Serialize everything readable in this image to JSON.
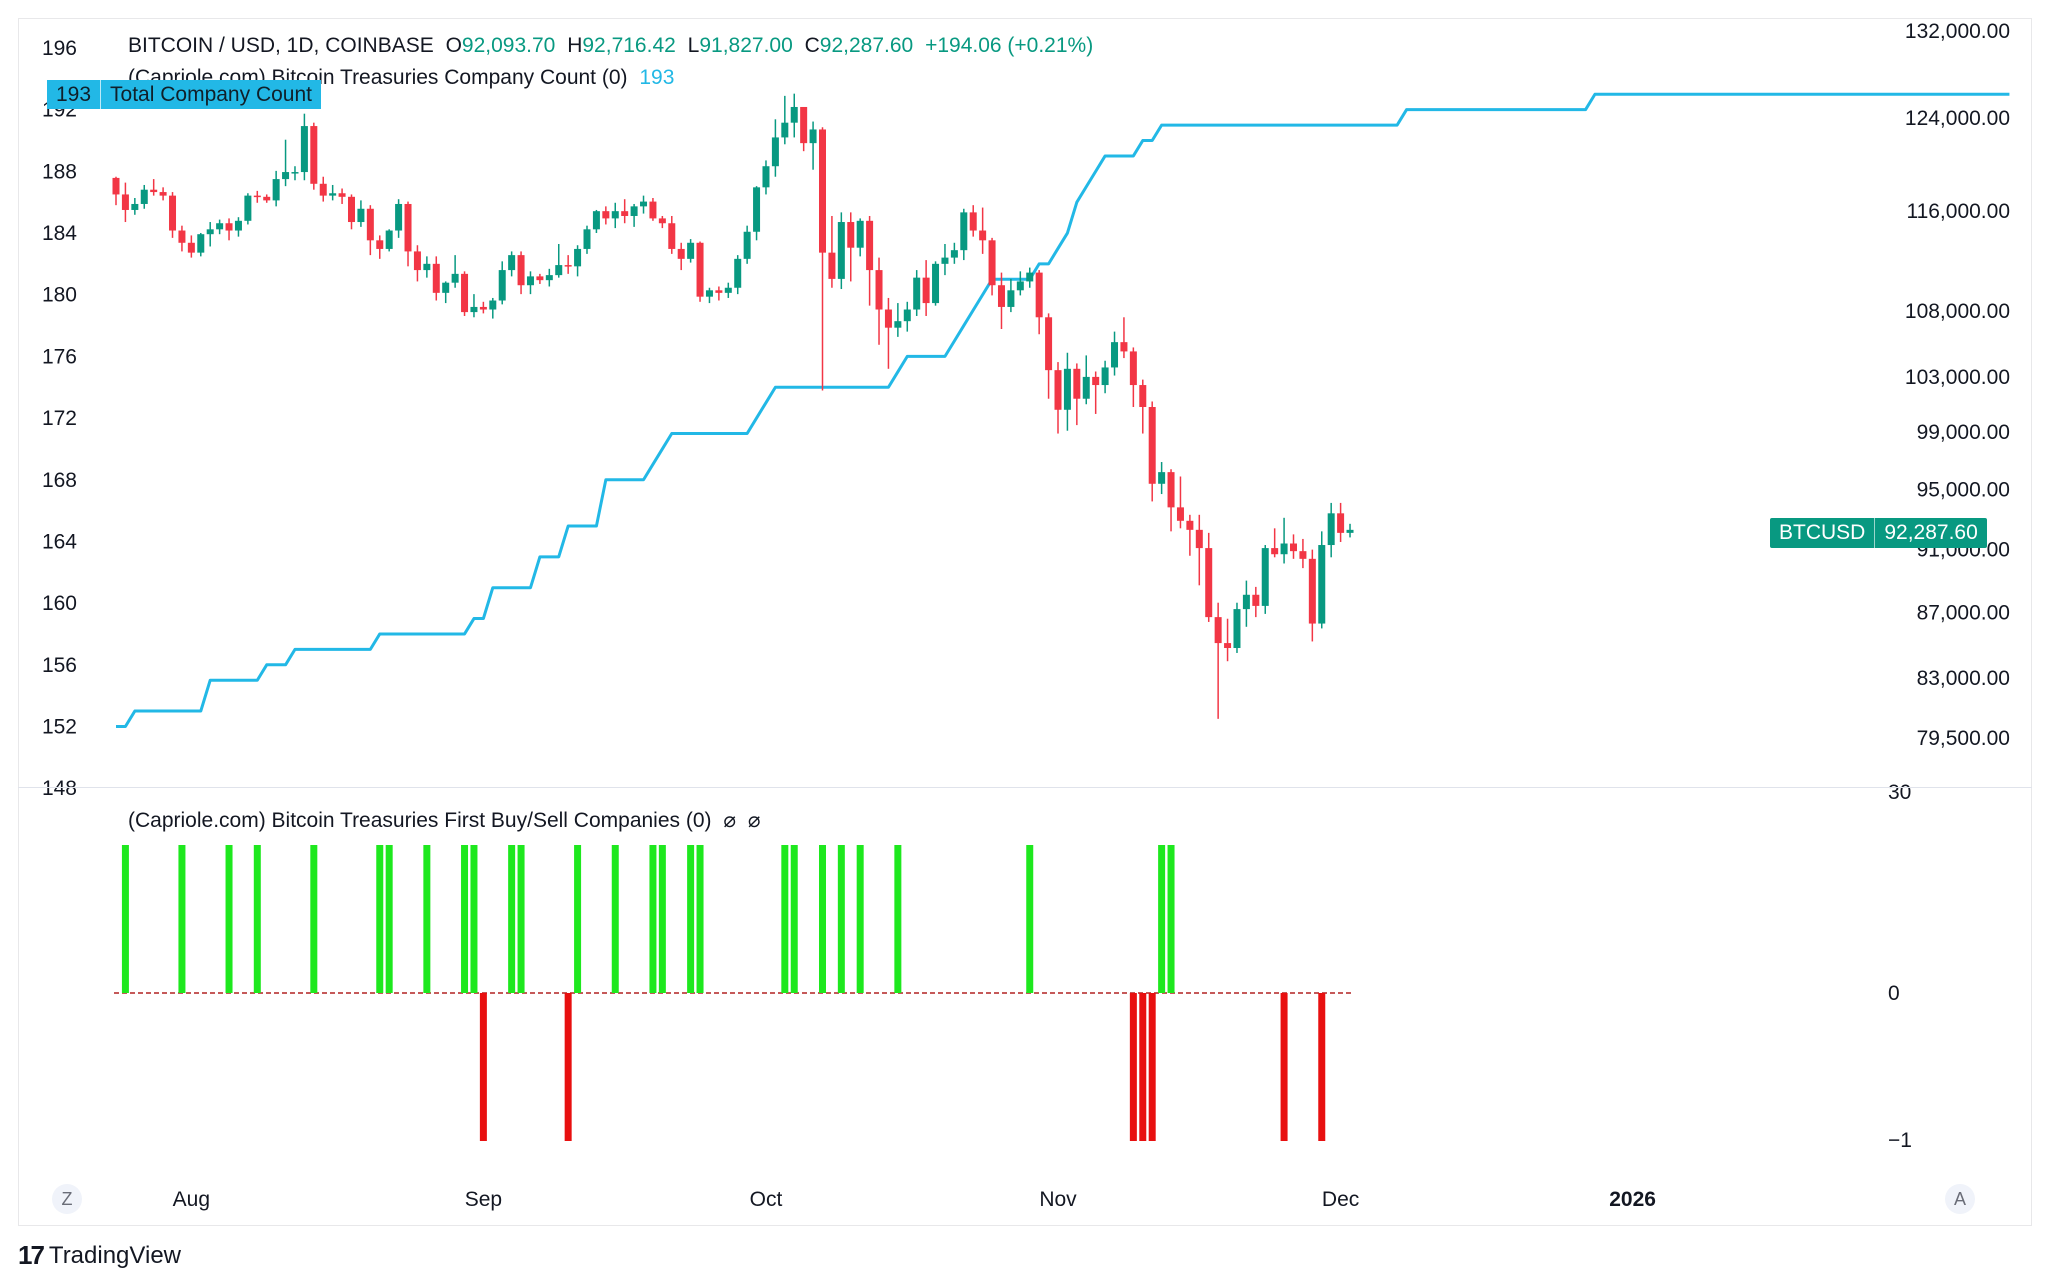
{
  "header": {
    "symbol": "BITCOIN / USD, 1D, COINBASE",
    "o_label": "O",
    "o_value": "92,093.70",
    "h_label": "H",
    "h_value": "92,716.42",
    "l_label": "L",
    "l_value": "91,827.00",
    "c_label": "C",
    "c_value": "92,287.60",
    "change": "+194.06 (+0.21%)"
  },
  "indicator1": {
    "title": "(Capriole.com) Bitcoin Treasuries Company Count (0)",
    "value": "193",
    "badge_value": "193",
    "badge_label": "Total Company Count"
  },
  "indicator2": {
    "title": "(Capriole.com) Bitcoin Treasuries First Buy/Sell Companies (0)",
    "icons": [
      "⌀",
      "⌀"
    ]
  },
  "price_badge": {
    "symbol": "BTCUSD",
    "value": "92,287.60"
  },
  "left_axis_labels": [
    "196",
    "192",
    "188",
    "184",
    "180",
    "176",
    "172",
    "168",
    "164",
    "160",
    "156",
    "152",
    "148"
  ],
  "right_axis_labels": [
    "132,000.00",
    "124,000.00",
    "116,000.00",
    "108,000.00",
    "103,000.00",
    "99,000.00",
    "95,000.00",
    "91,000.00",
    "87,000.00",
    "83,000.00",
    "79,500.00"
  ],
  "lower_axis_labels": [
    "30",
    "0",
    "−1"
  ],
  "x_axis_labels": [
    "Aug",
    "Sep",
    "Oct",
    "Nov",
    "Dec",
    "2026"
  ],
  "bottom_buttons": {
    "left": "Z",
    "right": "A"
  },
  "brand": {
    "logo": "17",
    "name": "TradingView"
  },
  "colors": {
    "up": "#089981",
    "down": "#f23645",
    "count_line": "#22b8e6",
    "buy_bar": "#1ee81e",
    "sell_bar": "#e81010"
  },
  "chart_data": [
    {
      "type": "candlestick",
      "title": "BITCOIN / USD, 1D, COINBASE",
      "price_scale": "log",
      "ylim": [
        79000,
        132000
      ],
      "first_date": "2025-07-24",
      "ohlc": [
        [
          118800,
          118900,
          116500,
          117400
        ],
        [
          117400,
          118400,
          115100,
          116100
        ],
        [
          116100,
          117100,
          115700,
          116600
        ],
        [
          116600,
          118200,
          116200,
          117800
        ],
        [
          117800,
          118700,
          117300,
          117600
        ],
        [
          117600,
          118000,
          116900,
          117300
        ],
        [
          117300,
          117600,
          113800,
          114400
        ],
        [
          114400,
          114800,
          112700,
          113400
        ],
        [
          113400,
          114000,
          112200,
          112600
        ],
        [
          112600,
          114200,
          112300,
          114100
        ],
        [
          114100,
          115100,
          113100,
          114500
        ],
        [
          114500,
          115300,
          114100,
          115000
        ],
        [
          115000,
          115400,
          113600,
          114400
        ],
        [
          114400,
          115500,
          113900,
          115200
        ],
        [
          115200,
          117500,
          114900,
          117300
        ],
        [
          117300,
          117700,
          116700,
          117200
        ],
        [
          117200,
          117400,
          116700,
          116900
        ],
        [
          116900,
          119400,
          116400,
          118700
        ],
        [
          118700,
          122100,
          118100,
          119300
        ],
        [
          119300,
          119800,
          118600,
          119300
        ],
        [
          119300,
          124400,
          118600,
          123300
        ],
        [
          123300,
          123600,
          117800,
          118300
        ],
        [
          118300,
          118900,
          116800,
          117300
        ],
        [
          117300,
          118200,
          116900,
          117500
        ],
        [
          117500,
          117900,
          116600,
          117200
        ],
        [
          117200,
          117400,
          114500,
          115100
        ],
        [
          115100,
          116900,
          114700,
          116200
        ],
        [
          116200,
          116500,
          112400,
          113600
        ],
        [
          113600,
          114000,
          112100,
          112900
        ],
        [
          112900,
          114500,
          112700,
          114400
        ],
        [
          114400,
          117000,
          113800,
          116600
        ],
        [
          116600,
          116800,
          111500,
          112700
        ],
        [
          112700,
          113200,
          110300,
          111200
        ],
        [
          111200,
          112300,
          110600,
          111700
        ],
        [
          111700,
          112300,
          108800,
          109400
        ],
        [
          109400,
          110300,
          108600,
          110200
        ],
        [
          110200,
          112400,
          109800,
          110900
        ],
        [
          110900,
          111100,
          107600,
          107900
        ],
        [
          107900,
          109300,
          107500,
          108300
        ],
        [
          108300,
          108700,
          107800,
          108100
        ],
        [
          108100,
          109000,
          107400,
          108800
        ],
        [
          108800,
          111900,
          108500,
          111200
        ],
        [
          111200,
          112700,
          110700,
          112400
        ],
        [
          112400,
          112700,
          109300,
          110000
        ],
        [
          110000,
          111100,
          109300,
          110700
        ],
        [
          110700,
          110900,
          110100,
          110400
        ],
        [
          110400,
          111300,
          109900,
          110800
        ],
        [
          110800,
          113300,
          110600,
          111600
        ],
        [
          111600,
          112400,
          110900,
          111500
        ],
        [
          111500,
          113200,
          110700,
          112900
        ],
        [
          112900,
          114800,
          112500,
          114500
        ],
        [
          114500,
          116100,
          114200,
          116000
        ],
        [
          116000,
          116400,
          114900,
          115400
        ],
        [
          115400,
          116700,
          114600,
          116000
        ],
        [
          116000,
          117000,
          115000,
          115600
        ],
        [
          115600,
          116600,
          114700,
          116400
        ],
        [
          116400,
          117300,
          115800,
          116800
        ],
        [
          116800,
          117100,
          115200,
          115400
        ],
        [
          115400,
          115600,
          114600,
          115000
        ],
        [
          115000,
          115600,
          112500,
          112900
        ],
        [
          112900,
          113400,
          111200,
          112100
        ],
        [
          112100,
          113700,
          111800,
          113400
        ],
        [
          113400,
          113500,
          108700,
          109100
        ],
        [
          109100,
          109800,
          108600,
          109600
        ],
        [
          109600,
          109900,
          108800,
          109400
        ],
        [
          109400,
          110200,
          109000,
          109800
        ],
        [
          109800,
          112400,
          109300,
          112100
        ],
        [
          112100,
          114800,
          111700,
          114300
        ],
        [
          114300,
          118100,
          113600,
          118000
        ],
        [
          118000,
          120300,
          117400,
          119800
        ],
        [
          119800,
          123900,
          118900,
          122300
        ],
        [
          122300,
          126000,
          121700,
          123600
        ],
        [
          123600,
          126200,
          122300,
          125000
        ],
        [
          125000,
          124900,
          121100,
          121800
        ],
        [
          121800,
          123700,
          119500,
          123000
        ],
        [
          123000,
          123200,
          102000,
          112600
        ],
        [
          112600,
          115600,
          109800,
          110500
        ],
        [
          110500,
          115900,
          109700,
          115100
        ],
        [
          115100,
          115900,
          110300,
          113000
        ],
        [
          113000,
          115400,
          112300,
          115200
        ],
        [
          115200,
          115600,
          108400,
          111200
        ],
        [
          111200,
          112200,
          105400,
          108100
        ],
        [
          108100,
          109000,
          103600,
          106700
        ],
        [
          106700,
          108600,
          106000,
          107200
        ],
        [
          107200,
          108700,
          106400,
          108100
        ],
        [
          108100,
          111200,
          107600,
          110600
        ],
        [
          110600,
          112000,
          107600,
          108600
        ],
        [
          108600,
          111900,
          108400,
          111700
        ],
        [
          111700,
          113300,
          110800,
          112200
        ],
        [
          112200,
          113400,
          111700,
          112800
        ],
        [
          112800,
          116200,
          112000,
          115900
        ],
        [
          115900,
          116500,
          113900,
          114400
        ],
        [
          114400,
          116300,
          112500,
          113600
        ],
        [
          113600,
          113800,
          109200,
          110000
        ],
        [
          110000,
          111000,
          106600,
          108300
        ],
        [
          108300,
          110500,
          107900,
          109600
        ],
        [
          109600,
          111100,
          109200,
          110300
        ],
        [
          110300,
          111400,
          109800,
          111000
        ],
        [
          111000,
          111200,
          106200,
          107500
        ],
        [
          107500,
          107800,
          101400,
          103500
        ],
        [
          103500,
          104100,
          98900,
          100600
        ],
        [
          100600,
          104800,
          99100,
          103600
        ],
        [
          103600,
          104000,
          99500,
          101400
        ],
        [
          101400,
          104600,
          101000,
          103000
        ],
        [
          103000,
          103400,
          100300,
          102400
        ],
        [
          102400,
          104200,
          101800,
          103700
        ],
        [
          103700,
          106400,
          103100,
          105600
        ],
        [
          105600,
          107500,
          104400,
          104900
        ],
        [
          104900,
          105200,
          100800,
          102400
        ],
        [
          102400,
          102800,
          98900,
          100800
        ],
        [
          100800,
          101200,
          94200,
          95400
        ],
        [
          95400,
          96900,
          94700,
          96200
        ],
        [
          96200,
          96400,
          92200,
          93800
        ],
        [
          93800,
          95900,
          92400,
          92900
        ],
        [
          92900,
          93300,
          90600,
          92300
        ],
        [
          92300,
          93300,
          88700,
          91100
        ],
        [
          91100,
          92100,
          86400,
          86700
        ],
        [
          86700,
          87600,
          80600,
          85100
        ],
        [
          85100,
          86600,
          84000,
          84800
        ],
        [
          84800,
          87600,
          84500,
          87200
        ],
        [
          87200,
          89000,
          86100,
          88100
        ],
        [
          88100,
          88600,
          86700,
          87400
        ],
        [
          87400,
          91300,
          86900,
          91100
        ],
        [
          91100,
          92400,
          90500,
          90700
        ],
        [
          90700,
          93100,
          90100,
          91400
        ],
        [
          91400,
          92000,
          90400,
          90900
        ],
        [
          90900,
          91700,
          89800,
          90400
        ],
        [
          90400,
          91000,
          85200,
          86300
        ],
        [
          86300,
          92200,
          86000,
          91300
        ],
        [
          91300,
          94100,
          90500,
          93400
        ],
        [
          93400,
          94100,
          91500,
          92100
        ],
        [
          92100,
          92700,
          91800,
          92300
        ]
      ]
    },
    {
      "type": "line",
      "name": "Total Company Count",
      "first_date": "2025-07-24",
      "values": [
        152,
        152,
        153,
        153,
        153,
        153,
        153,
        153,
        153,
        153,
        155,
        155,
        155,
        155,
        155,
        155,
        156,
        156,
        156,
        157,
        157,
        157,
        157,
        157,
        157,
        157,
        157,
        157,
        158,
        158,
        158,
        158,
        158,
        158,
        158,
        158,
        158,
        158,
        159,
        159,
        161,
        161,
        161,
        161,
        161,
        163,
        163,
        163,
        165,
        165,
        165,
        165,
        168,
        168,
        168,
        168,
        168,
        169,
        170,
        171,
        171,
        171,
        171,
        171,
        171,
        171,
        171,
        171,
        172,
        173,
        174,
        174,
        174,
        174,
        174,
        174,
        174,
        174,
        174,
        174,
        174,
        174,
        174,
        175,
        176,
        176,
        176,
        176,
        176,
        177,
        178,
        179,
        180,
        181,
        181,
        181,
        181,
        181,
        182,
        182,
        183,
        184,
        186,
        187,
        188,
        189,
        189,
        189,
        189,
        190,
        190,
        191,
        191,
        191,
        191,
        191,
        191,
        191,
        191,
        191,
        191,
        191,
        191,
        191,
        191,
        191,
        191,
        191,
        191,
        191,
        191,
        191,
        191,
        191,
        191,
        191,
        191,
        192,
        192,
        192,
        192,
        192,
        192,
        192,
        192,
        192,
        192,
        192,
        192,
        192,
        192,
        192,
        192,
        192,
        192,
        192,
        192,
        193,
        193,
        193,
        193,
        193,
        193,
        193,
        193,
        193,
        193,
        193,
        193,
        193,
        193,
        193,
        193,
        193,
        193,
        193,
        193,
        193,
        193,
        193,
        193,
        193,
        193,
        193,
        193,
        193,
        193,
        193,
        193,
        193,
        193,
        193,
        193,
        193,
        193,
        193,
        193,
        193,
        193,
        193,
        193,
        193
      ],
      "ylim": [
        148,
        197
      ]
    },
    {
      "type": "bar",
      "title": "(Capriole.com) Bitcoin Treasuries First Buy/Sell Companies (0)",
      "first_date": "2025-07-24",
      "day_index": [
        1,
        7,
        12,
        15,
        21,
        28,
        29,
        33,
        37,
        38,
        39,
        42,
        43,
        48,
        49,
        53,
        57,
        58,
        61,
        62,
        71,
        72,
        75,
        77,
        79,
        83,
        97,
        108,
        109,
        110,
        111,
        112,
        124,
        128
      ],
      "values": [
        1,
        1,
        1,
        1,
        1,
        1,
        1,
        1,
        1,
        1,
        -1,
        1,
        1,
        -1,
        1,
        1,
        1,
        1,
        1,
        1,
        1,
        1,
        1,
        1,
        1,
        1,
        1,
        -1,
        -1,
        -1,
        1,
        1,
        -1,
        -1
      ],
      "ylim": [
        -1,
        1
      ]
    }
  ]
}
